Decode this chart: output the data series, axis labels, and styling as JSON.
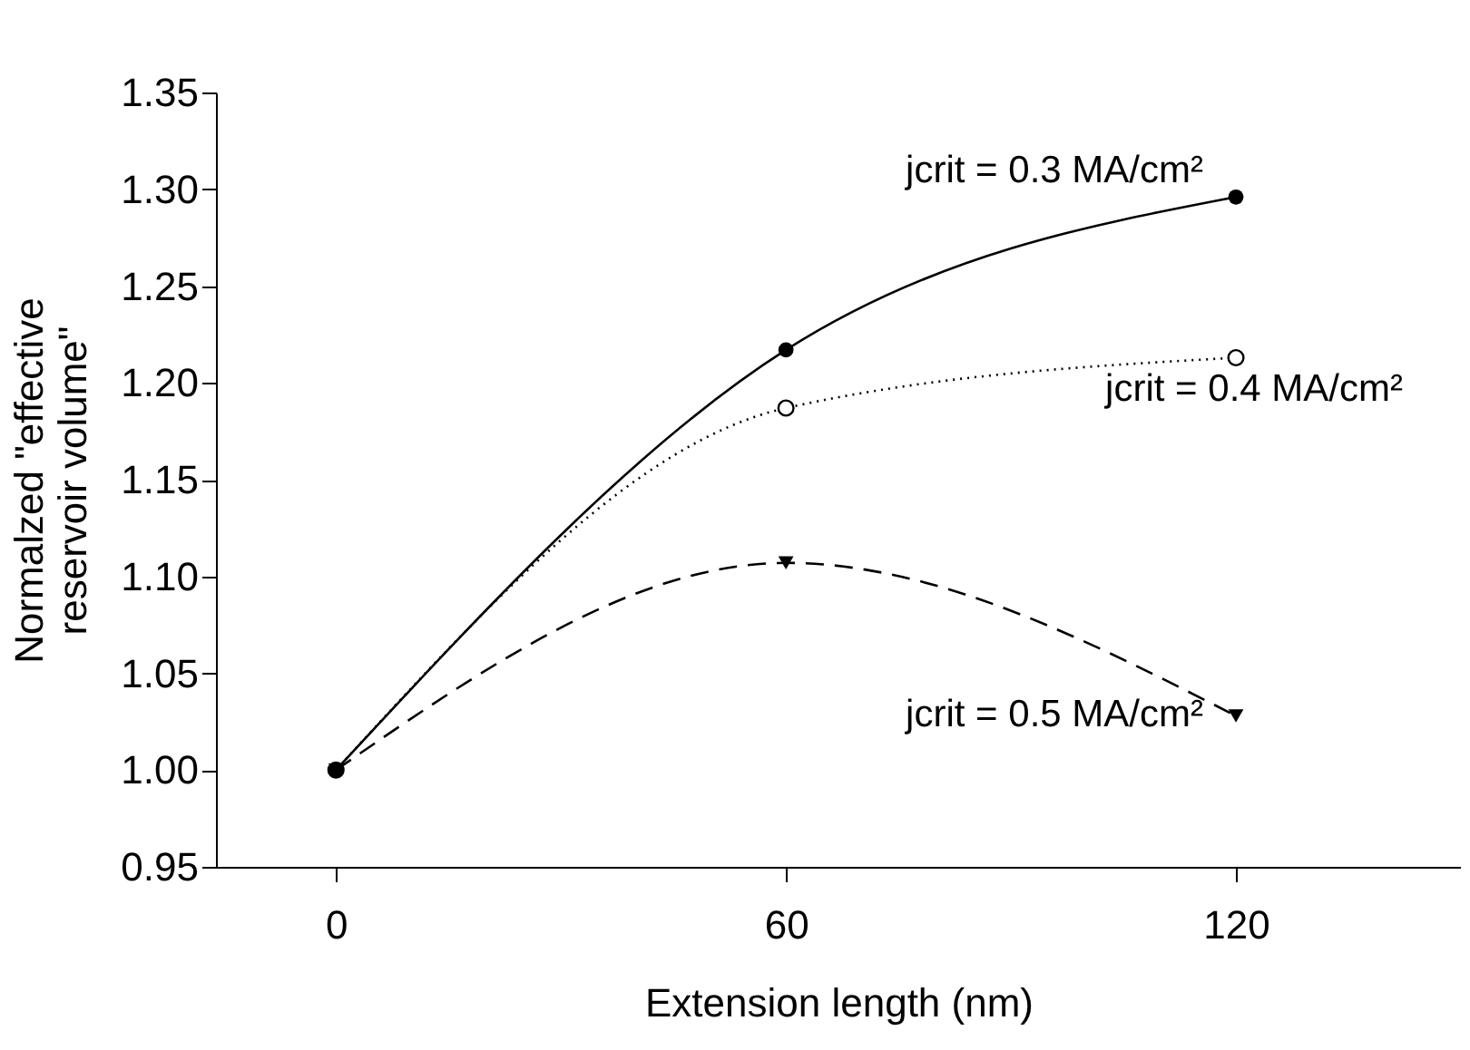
{
  "chart_data": {
    "type": "line",
    "xlabel": "Extension length (nm)",
    "ylabel": "Normalzed \"effective\nreservoir volume\"",
    "x": [
      0,
      60,
      120
    ],
    "xlim": [
      -16,
      150
    ],
    "xticks": [
      0,
      60,
      120
    ],
    "ylim": [
      0.95,
      1.35
    ],
    "yticks": [
      0.95,
      {
        "value": 1.0,
        "label": "1.00"
      },
      1.05,
      {
        "value": 1.1,
        "label": "1.10"
      },
      1.15,
      {
        "value": 1.2,
        "label": "1.20"
      },
      1.25,
      {
        "value": 1.3,
        "label": "1.30"
      },
      1.35
    ],
    "grid": false,
    "legend": false,
    "series": [
      {
        "name": "jcrit = 0.3 MA/cm²",
        "color": "#000000",
        "values": [
          1.0,
          1.217,
          1.296
        ],
        "marker": "circle",
        "line_style": "solid"
      },
      {
        "name": "jcrit = 0.4 MA/cm²",
        "color": "#000000",
        "values": [
          1.0,
          1.187,
          1.213
        ],
        "marker": "circle",
        "line_style": "dotted"
      },
      {
        "name": "jcrit = 0.5 MA/cm²",
        "color": "#000000",
        "values": [
          1.0,
          1.107,
          1.028
        ],
        "marker": "triangle",
        "line_style": "dashed"
      }
    ]
  }
}
